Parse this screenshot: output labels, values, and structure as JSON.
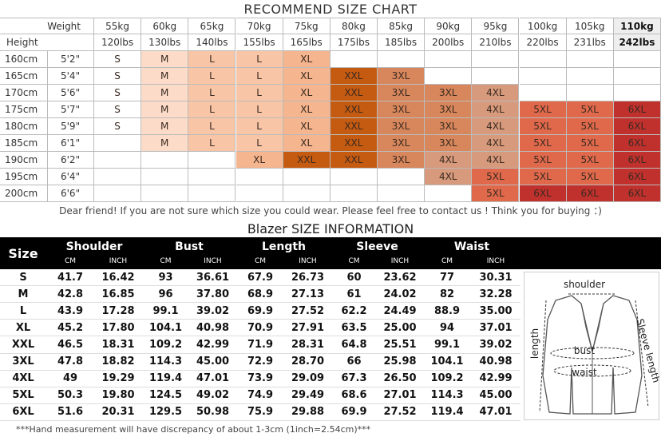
{
  "size_chart": {
    "title": "RECOMMEND SIZE CHART",
    "weight_label": "Weight",
    "height_label": "Height",
    "weights_kg": [
      "55kg",
      "60kg",
      "65kg",
      "70kg",
      "75kg",
      "80kg",
      "85kg",
      "90kg",
      "95kg",
      "100kg",
      "105kg",
      "110kg"
    ],
    "weights_lbs": [
      "120lbs",
      "130lbs",
      "140lbs",
      "155lbs",
      "165lbs",
      "175lbs",
      "185lbs",
      "200lbs",
      "210lbs",
      "220lbs",
      "231lbs",
      "242lbs"
    ],
    "size_colors": {
      "S": "#ffffff",
      "M": "#fcdcc8",
      "L": "#f8c6a6",
      "XL": "#f5b58f",
      "XXL": "#c55a11",
      "3XL": "#d8875c",
      "4XL": "#d79a7c",
      "5XL": "#e0694c",
      "6XL": "#c0312d"
    },
    "rows": [
      {
        "cm": "160cm",
        "ft": "5'2\"",
        "sizes": [
          "S",
          "M",
          "L",
          "L",
          "XL",
          null,
          null,
          null,
          null,
          null,
          null,
          null
        ]
      },
      {
        "cm": "165cm",
        "ft": "5'4\"",
        "sizes": [
          "S",
          "M",
          "L",
          "L",
          "XL",
          "XXL",
          "3XL",
          null,
          null,
          null,
          null,
          null
        ]
      },
      {
        "cm": "170cm",
        "ft": "5'6\"",
        "sizes": [
          "S",
          "M",
          "L",
          "L",
          "XL",
          "XXL",
          "3XL",
          "3XL",
          "4XL",
          null,
          null,
          null
        ]
      },
      {
        "cm": "175cm",
        "ft": "5'7\"",
        "sizes": [
          "S",
          "M",
          "L",
          "L",
          "XL",
          "XXL",
          "3XL",
          "3XL",
          "4XL",
          "5XL",
          "5XL",
          "6XL"
        ]
      },
      {
        "cm": "180cm",
        "ft": "5'9\"",
        "sizes": [
          "S",
          "M",
          "L",
          "L",
          "XL",
          "XXL",
          "3XL",
          "3XL",
          "4XL",
          "5XL",
          "5XL",
          "6XL"
        ]
      },
      {
        "cm": "185cm",
        "ft": "6'1\"",
        "sizes": [
          null,
          "M",
          "L",
          "L",
          "XL",
          "XXL",
          "3XL",
          "3XL",
          "4XL",
          "5XL",
          "5XL",
          "6XL"
        ]
      },
      {
        "cm": "190cm",
        "ft": "6'2\"",
        "sizes": [
          null,
          null,
          null,
          "XL",
          "XXL",
          "XXL",
          "3XL",
          "4XL",
          "4XL",
          "5XL",
          "5XL",
          "6XL"
        ]
      },
      {
        "cm": "195cm",
        "ft": "6'4\"",
        "sizes": [
          null,
          null,
          null,
          null,
          null,
          null,
          null,
          "4XL",
          "5XL",
          "5XL",
          "5XL",
          "6XL"
        ]
      },
      {
        "cm": "200cm",
        "ft": "6'6\"",
        "sizes": [
          null,
          null,
          null,
          null,
          null,
          null,
          null,
          null,
          "5XL",
          "6XL",
          "6XL",
          "6XL"
        ]
      }
    ],
    "note": "Dear friend! If you are not sure which size you could wear. Please feel free to contact us ! Think you for buying ：)"
  },
  "blazer": {
    "title": "Blazer SIZE INFORMATION",
    "size_label": "Size",
    "measures": [
      {
        "name": "Shoulder",
        "units": [
          "CM",
          "INCH"
        ]
      },
      {
        "name": "Bust",
        "units": [
          "CM",
          "INCH"
        ]
      },
      {
        "name": "Length",
        "units": [
          "CM",
          "INCH"
        ]
      },
      {
        "name": "Sleeve",
        "units": [
          "CM",
          "INCH"
        ]
      },
      {
        "name": "Waist",
        "units": [
          "CM",
          "INCH"
        ]
      }
    ],
    "rows": [
      [
        "S",
        "41.7",
        "16.42",
        "93",
        "36.61",
        "67.9",
        "26.73",
        "60",
        "23.62",
        "77",
        "30.31"
      ],
      [
        "M",
        "42.8",
        "16.85",
        "96",
        "37.80",
        "68.9",
        "27.13",
        "61",
        "24.02",
        "82",
        "32.28"
      ],
      [
        "L",
        "43.9",
        "17.28",
        "99.1",
        "39.02",
        "69.9",
        "27.52",
        "62.2",
        "24.49",
        "88.9",
        "35.00"
      ],
      [
        "XL",
        "45.2",
        "17.80",
        "104.1",
        "40.98",
        "70.9",
        "27.91",
        "63.5",
        "25.00",
        "94",
        "37.01"
      ],
      [
        "XXL",
        "46.5",
        "18.31",
        "109.2",
        "42.99",
        "71.9",
        "28.31",
        "64.8",
        "25.51",
        "99.1",
        "39.02"
      ],
      [
        "3XL",
        "47.8",
        "18.82",
        "114.3",
        "45.00",
        "72.9",
        "28.70",
        "66",
        "25.98",
        "104.1",
        "40.98"
      ],
      [
        "4XL",
        "49",
        "19.29",
        "119.4",
        "47.01",
        "73.9",
        "29.09",
        "67.3",
        "26.50",
        "109.2",
        "42.99"
      ],
      [
        "5XL",
        "50.3",
        "19.80",
        "124.5",
        "49.02",
        "74.9",
        "29.49",
        "68.6",
        "27.01",
        "114.3",
        "45.00"
      ],
      [
        "6XL",
        "51.6",
        "20.31",
        "129.5",
        "50.98",
        "75.9",
        "29.88",
        "69.9",
        "27.52",
        "119.4",
        "47.01"
      ]
    ],
    "diagram": {
      "shoulder": "shoulder",
      "length": "length",
      "bust": "bust",
      "waist": "waist",
      "sleeve": "Sleeve length"
    },
    "footnote": "***Hand measurement will have discrepancy of about 1-3cm (1inch=2.54cm)***"
  }
}
